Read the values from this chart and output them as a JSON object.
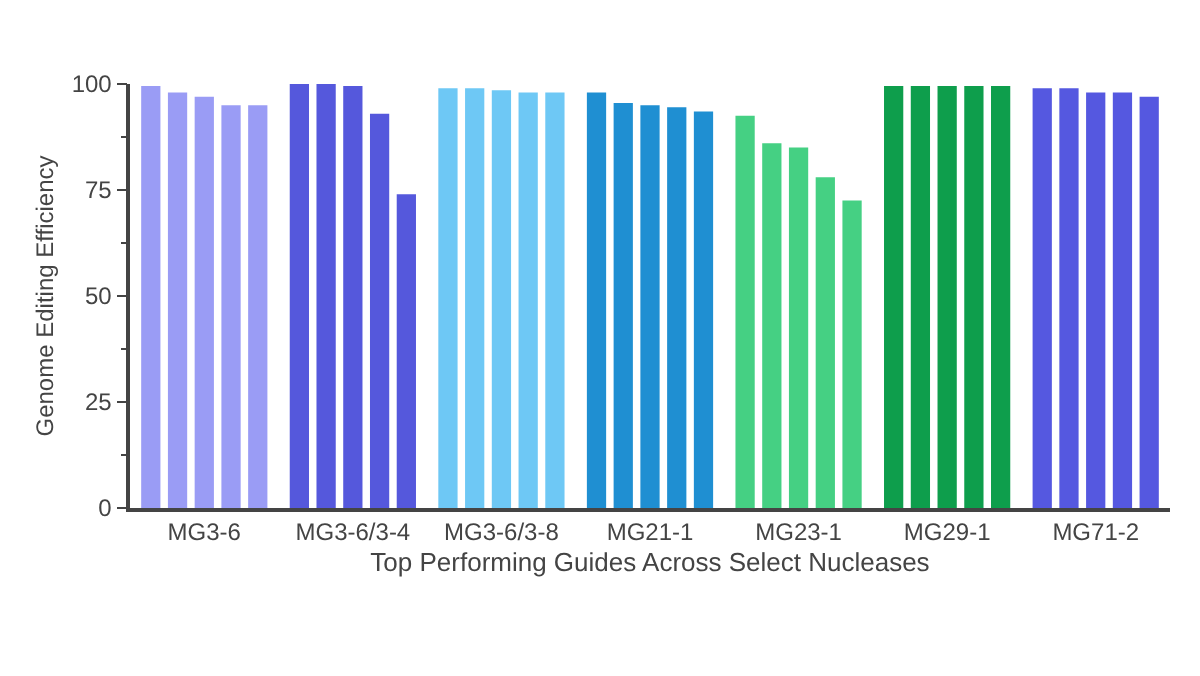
{
  "chart_data": {
    "type": "bar",
    "xlabel": "Top Performing Guides Across Select Nucleases",
    "ylabel": "Genome Editing Efficiency",
    "categories": [
      "MG3-6",
      "MG3-6/3-4",
      "MG3-6/3-8",
      "MG21-1",
      "MG23-1",
      "MG29-1",
      "MG71-2"
    ],
    "series": [
      {
        "colors": [
          "#9a9cf5",
          "#5558dc",
          "#6ec8f5",
          "#1f8fd2",
          "#45d083",
          "#0e9e4c",
          "#5558e0"
        ],
        "values": [
          99.5,
          100,
          99,
          98,
          92.5,
          99.5,
          99
        ]
      },
      {
        "colors": [
          "#9a9cf5",
          "#5558dc",
          "#6ec8f5",
          "#1f8fd2",
          "#45d083",
          "#0e9e4c",
          "#5558e0"
        ],
        "values": [
          98,
          100,
          99,
          95.5,
          86,
          99.5,
          99
        ]
      },
      {
        "colors": [
          "#9a9cf5",
          "#5558dc",
          "#6ec8f5",
          "#1f8fd2",
          "#45d083",
          "#0e9e4c",
          "#5558e0"
        ],
        "values": [
          97,
          99.5,
          98.5,
          95,
          85,
          99.5,
          98
        ]
      },
      {
        "colors": [
          "#9a9cf5",
          "#5558dc",
          "#6ec8f5",
          "#1f8fd2",
          "#45d083",
          "#0e9e4c",
          "#5558e0"
        ],
        "values": [
          95,
          93,
          98,
          94.5,
          78,
          99.5,
          98
        ]
      },
      {
        "colors": [
          "#9a9cf5",
          "#5558dc",
          "#6ec8f5",
          "#1f8fd2",
          "#45d083",
          "#0e9e4c",
          "#5558e0"
        ],
        "values": [
          95,
          74,
          98,
          93.5,
          72.5,
          99.5,
          97
        ]
      }
    ],
    "ylim": [
      0,
      100
    ],
    "yticks": [
      0,
      25,
      50,
      75,
      100
    ]
  }
}
